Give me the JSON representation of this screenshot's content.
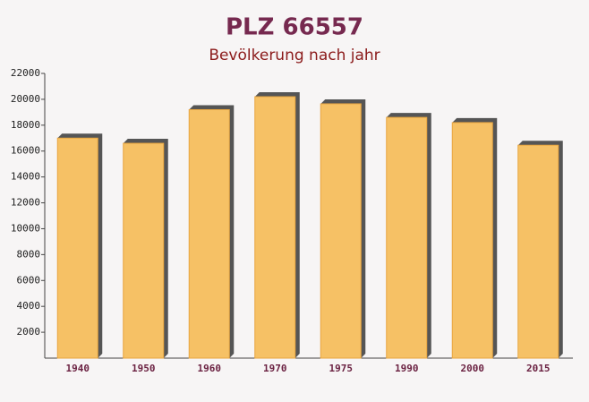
{
  "chart_data": {
    "type": "bar",
    "title": "PLZ 66557",
    "subtitle": "Bevölkerung nach jahr",
    "categories": [
      "1940",
      "1950",
      "1960",
      "1970",
      "1975",
      "1990",
      "2000",
      "2015"
    ],
    "values": [
      17000,
      16600,
      19200,
      20200,
      19650,
      18600,
      18200,
      16450
    ],
    "color": "#f6c165",
    "ylim": [
      0,
      22000
    ],
    "yticks": [
      2000,
      4000,
      6000,
      8000,
      10000,
      12000,
      14000,
      16000,
      18000,
      20000,
      22000
    ],
    "grid": false
  }
}
